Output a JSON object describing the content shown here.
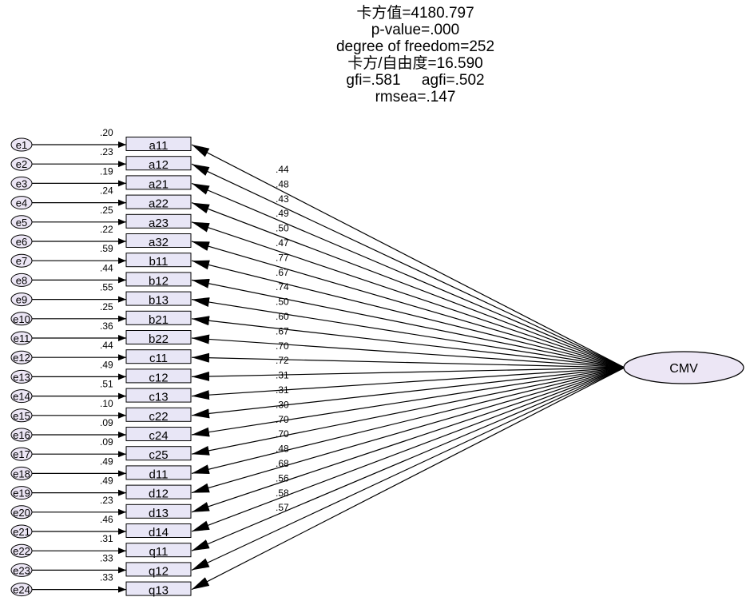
{
  "stats": {
    "chi_square": "卡方值=4180.797",
    "p_value": "p-value=.000",
    "df": "degree of freedom=252",
    "chi_df": "卡方/自由度=16.590",
    "gfi_agfi": "gfi=.581     agfi=.502",
    "rmsea": "rmsea=.147"
  },
  "latent": {
    "label": "CMV"
  },
  "colors": {
    "box_fill": "#e8e6f6",
    "ellipse_fill": "#ece6f5",
    "stroke": "#000000"
  },
  "indicators": [
    {
      "error": "e1",
      "label": "a11",
      "r2": ".20",
      "loading": ".44"
    },
    {
      "error": "e2",
      "label": "a12",
      "r2": ".23",
      "loading": ".48"
    },
    {
      "error": "e3",
      "label": "a21",
      "r2": ".19",
      "loading": ".43"
    },
    {
      "error": "e4",
      "label": "a22",
      "r2": ".24",
      "loading": ".49"
    },
    {
      "error": "e5",
      "label": "a23",
      "r2": ".25",
      "loading": ".50"
    },
    {
      "error": "e6",
      "label": "a32",
      "r2": ".22",
      "loading": ".47"
    },
    {
      "error": "e7",
      "label": "b11",
      "r2": ".59",
      "loading": ".77"
    },
    {
      "error": "e8",
      "label": "b12",
      "r2": ".44",
      "loading": ".67"
    },
    {
      "error": "e9",
      "label": "b13",
      "r2": ".55",
      "loading": ".74"
    },
    {
      "error": "e10",
      "label": "b21",
      "r2": ".25",
      "loading": ".50"
    },
    {
      "error": "e11",
      "label": "b22",
      "r2": ".36",
      "loading": ".60"
    },
    {
      "error": "e12",
      "label": "c11",
      "r2": ".44",
      "loading": ".67"
    },
    {
      "error": "e13",
      "label": "c12",
      "r2": ".49",
      "loading": ".70"
    },
    {
      "error": "e14",
      "label": "c13",
      "r2": ".51",
      "loading": ".72"
    },
    {
      "error": "e15",
      "label": "c22",
      "r2": ".10",
      "loading": ".31"
    },
    {
      "error": "e16",
      "label": "c24",
      "r2": ".09",
      "loading": ".31"
    },
    {
      "error": "e17",
      "label": "c25",
      "r2": ".09",
      "loading": ".30"
    },
    {
      "error": "e18",
      "label": "d11",
      "r2": ".49",
      "loading": ".70"
    },
    {
      "error": "e19",
      "label": "d12",
      "r2": ".49",
      "loading": ".70"
    },
    {
      "error": "e20",
      "label": "d13",
      "r2": ".23",
      "loading": ".48"
    },
    {
      "error": "e21",
      "label": "d14",
      "r2": ".46",
      "loading": ".68"
    },
    {
      "error": "e22",
      "label": "q11",
      "r2": ".31",
      "loading": ".56"
    },
    {
      "error": "e23",
      "label": "q12",
      "r2": ".33",
      "loading": ".58"
    },
    {
      "error": "e24",
      "label": "q13",
      "r2": ".33",
      "loading": ".57"
    }
  ]
}
